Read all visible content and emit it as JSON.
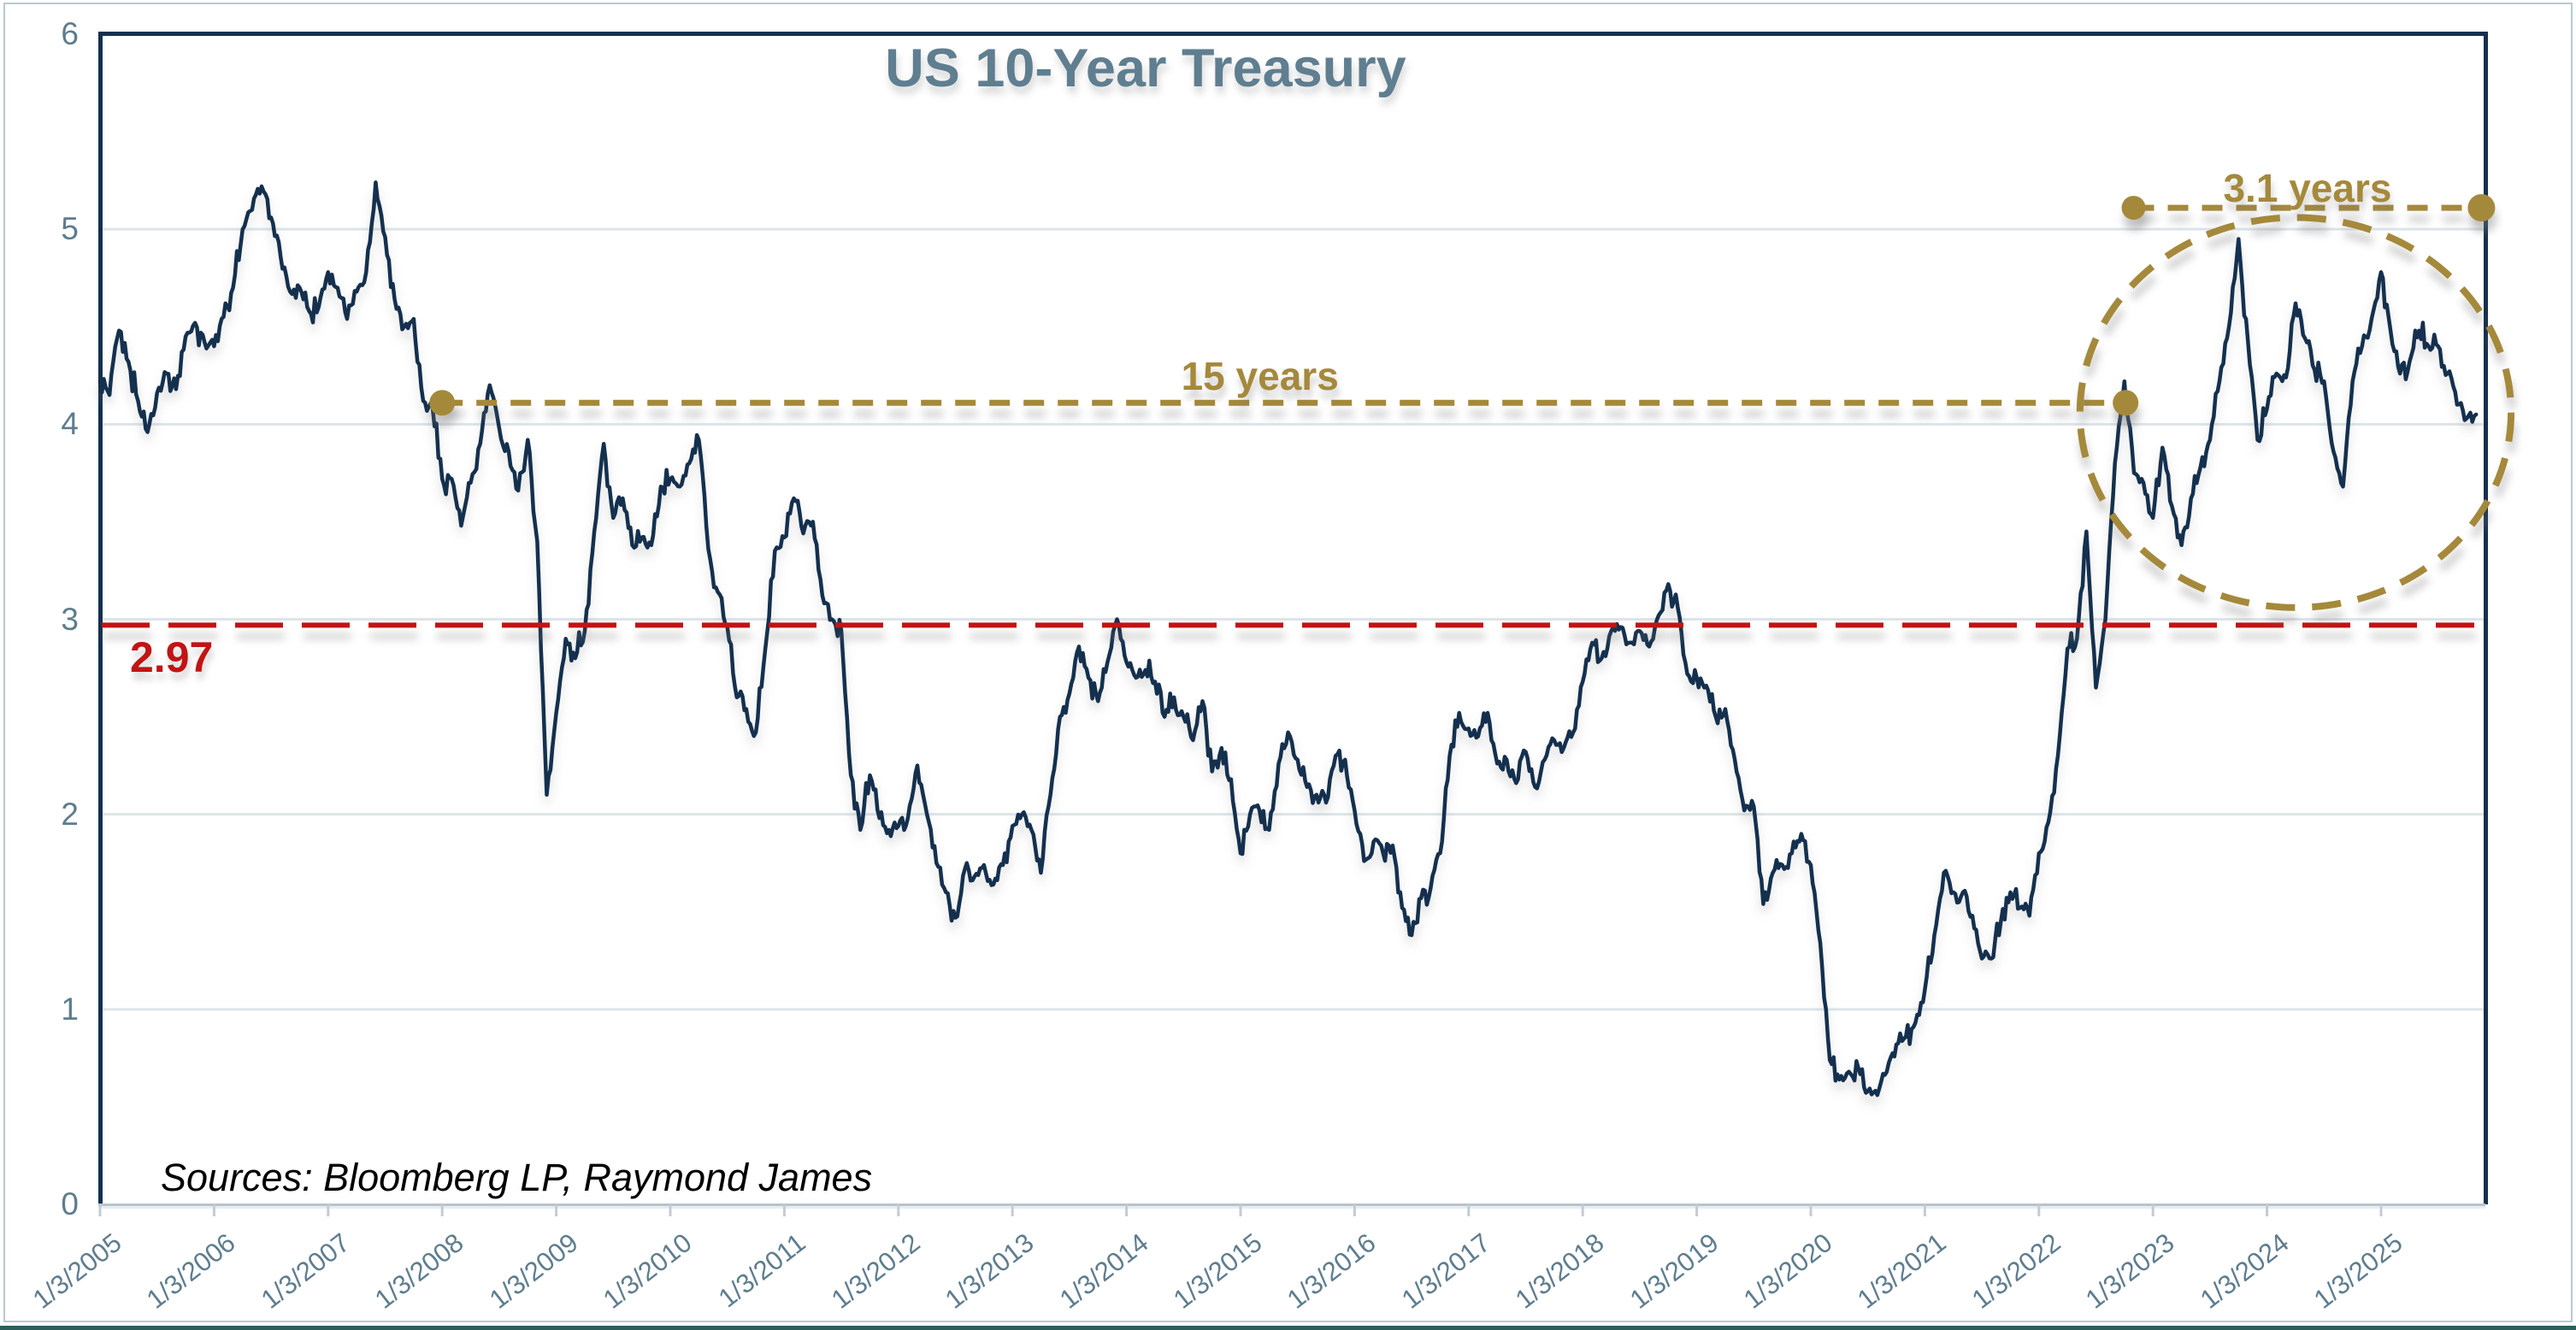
{
  "title": "US 10-Year Treasury",
  "source_note": "Sources: Bloomberg LP, Raymond James",
  "colors": {
    "series_line": "#14304e",
    "accent_gold": "#a5893b",
    "accent_red": "#c11414",
    "title_slate": "#5f7e90",
    "axis_label_slate": "#5e7d8e",
    "gridline": "#dde5ea",
    "axis_gray": "#c2ccd3",
    "frame_navy": "#14304e"
  },
  "annotations": {
    "span_15_years": {
      "label": "15 years",
      "value_level": 4.11,
      "start_year": 2008.0,
      "end_year": 2022.76
    },
    "span_3_1_years": {
      "label": "3.1 years",
      "value_level": 5.11,
      "start_year": 2022.83,
      "end_year": 2025.88
    },
    "reference_line": {
      "label": "2.97",
      "value_level": 2.97
    },
    "highlight_ellipse": {
      "center_year": 2024.25,
      "center_value": 4.06,
      "radius_years": 1.89,
      "radius_value": 1.0
    }
  },
  "chart_data": {
    "type": "line",
    "title": "US 10-Year Treasury",
    "xlabel": "",
    "ylabel": "",
    "ylim": [
      0,
      6
    ],
    "y_ticks": [
      0,
      1,
      2,
      3,
      4,
      5,
      6
    ],
    "grid": "horizontal",
    "legend": "none",
    "x_tick_labels": [
      "1/3/2005",
      "1/3/2006",
      "1/3/2007",
      "1/3/2008",
      "1/3/2009",
      "1/3/2010",
      "1/3/2011",
      "1/3/2012",
      "1/3/2013",
      "1/3/2014",
      "1/3/2015",
      "1/3/2016",
      "1/3/2017",
      "1/3/2018",
      "1/3/2019",
      "1/3/2020",
      "1/3/2021",
      "1/3/2022",
      "1/3/2023",
      "1/3/2024",
      "1/3/2025"
    ],
    "series": [
      {
        "name": "US 10-Year Treasury Yield (%)",
        "start_year": 2005,
        "interval_months": 1,
        "values": [
          4.22,
          4.15,
          4.48,
          4.32,
          4.12,
          3.96,
          4.16,
          4.26,
          4.18,
          4.45,
          4.52,
          4.42,
          4.4,
          4.55,
          4.7,
          5.0,
          5.1,
          5.22,
          5.06,
          4.86,
          4.68,
          4.7,
          4.58,
          4.6,
          4.78,
          4.7,
          4.54,
          4.68,
          4.78,
          5.24,
          4.96,
          4.64,
          4.5,
          4.54,
          4.12,
          4.08,
          3.72,
          3.72,
          3.48,
          3.7,
          3.9,
          4.2,
          3.98,
          3.86,
          3.66,
          3.92,
          3.4,
          2.1,
          2.52,
          2.9,
          2.8,
          2.94,
          3.45,
          3.9,
          3.52,
          3.62,
          3.38,
          3.42,
          3.38,
          3.68,
          3.72,
          3.68,
          3.8,
          3.92,
          3.36,
          3.14,
          2.96,
          2.6,
          2.54,
          2.42,
          2.85,
          3.35,
          3.42,
          3.62,
          3.44,
          3.5,
          3.12,
          3.0,
          2.94,
          2.2,
          1.92,
          2.2,
          1.98,
          1.92,
          1.94,
          1.98,
          2.25,
          2.0,
          1.75,
          1.6,
          1.47,
          1.72,
          1.68,
          1.74,
          1.64,
          1.74,
          1.94,
          2.0,
          1.92,
          1.7,
          2.1,
          2.5,
          2.62,
          2.86,
          2.7,
          2.58,
          2.78,
          3.0,
          2.78,
          2.7,
          2.74,
          2.68,
          2.5,
          2.6,
          2.5,
          2.38,
          2.58,
          2.22,
          2.34,
          2.18,
          1.8,
          2.0,
          2.02,
          1.92,
          2.26,
          2.42,
          2.28,
          2.14,
          2.1,
          2.06,
          2.3,
          2.28,
          2.02,
          1.76,
          1.86,
          1.8,
          1.84,
          1.52,
          1.38,
          1.57,
          1.62,
          1.8,
          2.3,
          2.52,
          2.44,
          2.4,
          2.52,
          2.26,
          2.28,
          2.16,
          2.32,
          2.14,
          2.28,
          2.38,
          2.34,
          2.42,
          2.68,
          2.88,
          2.8,
          2.94,
          2.96,
          2.88,
          2.94,
          2.86,
          3.02,
          3.18,
          3.06,
          2.72,
          2.7,
          2.66,
          2.5,
          2.54,
          2.28,
          2.02,
          2.04,
          1.54,
          1.7,
          1.74,
          1.8,
          1.9,
          1.74,
          1.34,
          0.74,
          0.64,
          0.68,
          0.7,
          0.58,
          0.56,
          0.68,
          0.82,
          0.86,
          0.93,
          1.1,
          1.38,
          1.7,
          1.6,
          1.6,
          1.48,
          1.26,
          1.26,
          1.45,
          1.6,
          1.52,
          1.48,
          1.8,
          1.96,
          2.3,
          2.85,
          2.9,
          3.45,
          2.65,
          3.0,
          3.8,
          4.22,
          3.75,
          3.7,
          3.52,
          3.88,
          3.58,
          3.38,
          3.62,
          3.78,
          3.92,
          4.22,
          4.5,
          4.95,
          4.42,
          3.92,
          4.08,
          4.26,
          4.24,
          4.62,
          4.44,
          4.28,
          4.22,
          3.86,
          3.68,
          4.22,
          4.4,
          4.54,
          4.78,
          4.48,
          4.26,
          4.32,
          4.48,
          4.4,
          4.4,
          4.26,
          4.1,
          4.03,
          4.05
        ]
      }
    ]
  }
}
